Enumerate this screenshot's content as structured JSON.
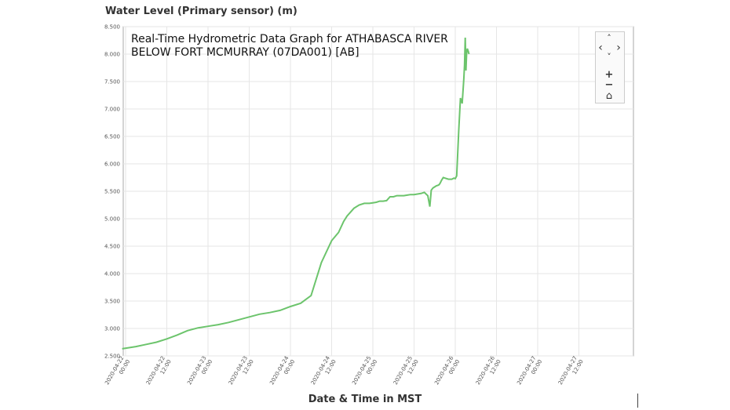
{
  "chart_data": {
    "type": "line",
    "title_lines": [
      "Real-Time Hydrometric Data Graph for ATHABASCA RIVER",
      "BELOW FORT MCMURRAY (07DA001) [AB]"
    ],
    "xlabel": "Date & Time in MST",
    "ylabel": "Water Level (Primary sensor) (m)",
    "ylim": [
      2.5,
      8.5
    ],
    "yticks": [
      "2.500",
      "3.000",
      "3.500",
      "4.000",
      "4.500",
      "5.000",
      "5.500",
      "6.000",
      "6.500",
      "7.000",
      "7.500",
      "8.000",
      "8.500"
    ],
    "xticks": [
      [
        "2020-04-22",
        "00:00"
      ],
      [
        "2020-04-22",
        "12:00"
      ],
      [
        "2020-04-23",
        "00:00"
      ],
      [
        "2020-04-23",
        "12:00"
      ],
      [
        "2020-04-24",
        "00:00"
      ],
      [
        "2020-04-24",
        "12:00"
      ],
      [
        "2020-04-25",
        "00:00"
      ],
      [
        "2020-04-25",
        "12:00"
      ],
      [
        "2020-04-26",
        "00:00"
      ],
      [
        "2020-04-26",
        "12:00"
      ],
      [
        "2020-04-27",
        "00:00"
      ],
      [
        "2020-04-27",
        "12:00"
      ]
    ],
    "grid": true,
    "series_color": "#6cc46c",
    "x_units": "hours since 2020-04-22 00:00 (tick index x 12)",
    "x": [
      -1,
      3,
      6,
      9,
      12,
      15,
      18,
      21,
      24,
      27,
      30,
      33,
      36,
      39,
      42,
      45,
      48,
      51,
      54,
      57,
      60,
      62,
      63.5,
      64.5,
      65.5,
      66.5,
      68,
      69.5,
      71,
      72,
      73,
      74,
      75,
      76,
      77,
      78,
      79,
      80,
      81,
      82,
      83,
      84,
      85,
      86,
      87,
      88,
      88.6,
      89,
      89.5,
      90,
      90.5,
      91,
      91.3,
      91.6,
      92,
      92.5,
      93,
      94,
      95,
      95.6,
      96,
      96.4,
      97,
      97.5,
      98,
      98.5,
      98.7,
      98.9,
      99.1,
      99.3,
      99.5,
      99.8,
      100
    ],
    "y": [
      2.63,
      2.67,
      2.71,
      2.75,
      2.81,
      2.88,
      2.96,
      3.01,
      3.04,
      3.07,
      3.11,
      3.16,
      3.21,
      3.26,
      3.29,
      3.33,
      3.4,
      3.46,
      3.6,
      4.2,
      4.6,
      4.75,
      4.95,
      5.05,
      5.12,
      5.19,
      5.25,
      5.28,
      5.28,
      5.29,
      5.3,
      5.32,
      5.32,
      5.33,
      5.4,
      5.4,
      5.42,
      5.42,
      5.42,
      5.43,
      5.44,
      5.44,
      5.45,
      5.46,
      5.48,
      5.42,
      5.22,
      5.52,
      5.56,
      5.58,
      5.6,
      5.61,
      5.62,
      5.65,
      5.7,
      5.75,
      5.74,
      5.72,
      5.72,
      5.74,
      5.73,
      5.78,
      6.6,
      7.2,
      7.1,
      7.55,
      7.8,
      8.3,
      7.7,
      8.0,
      8.1,
      8.05,
      8.0
    ]
  },
  "controls": {
    "pan_up": "˄",
    "pan_left": "‹",
    "pan_right": "›",
    "pan_down": "˅",
    "zoom_in": "+",
    "zoom_out": "−",
    "home": "⌂"
  }
}
